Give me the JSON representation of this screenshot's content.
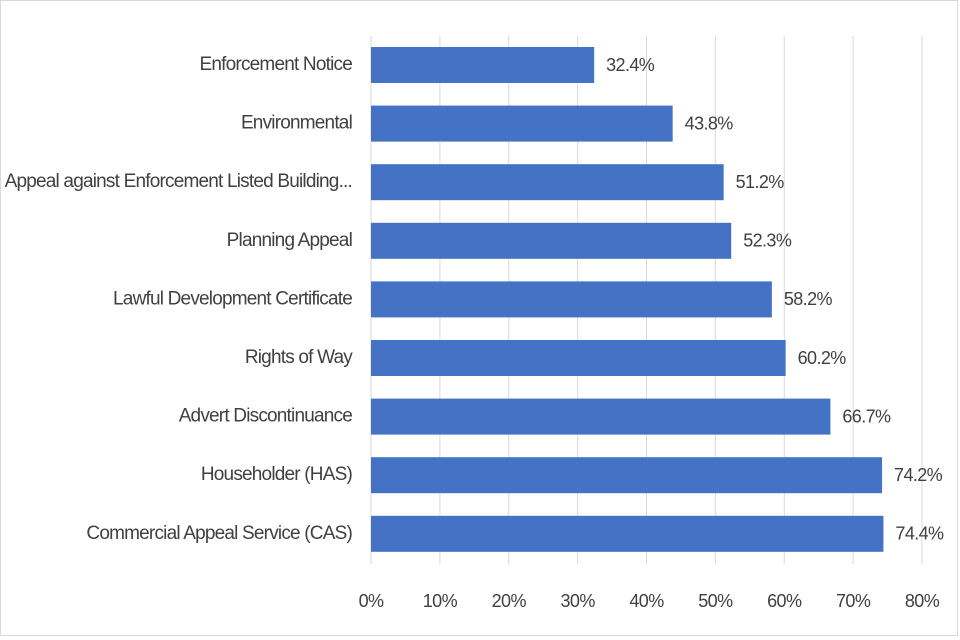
{
  "chart_data": {
    "type": "bar",
    "orientation": "horizontal",
    "categories": [
      "Enforcement Notice",
      "Environmental",
      "Appeal against Enforcement Listed Building...",
      "Planning Appeal",
      "Lawful Development Certificate",
      "Rights of Way",
      "Advert Discontinuance",
      "Householder (HAS)",
      "Commercial Appeal Service (CAS)"
    ],
    "values": [
      32.4,
      43.8,
      51.2,
      52.3,
      58.2,
      60.2,
      66.7,
      74.2,
      74.4
    ],
    "value_labels": [
      "32.4%",
      "43.8%",
      "51.2%",
      "52.3%",
      "58.2%",
      "60.2%",
      "66.7%",
      "74.2%",
      "74.4%"
    ],
    "xlim": [
      0,
      80
    ],
    "xticks": [
      0,
      10,
      20,
      30,
      40,
      50,
      60,
      70,
      80
    ],
    "xtick_labels": [
      "0%",
      "10%",
      "20%",
      "30%",
      "40%",
      "50%",
      "60%",
      "70%",
      "80%"
    ],
    "title": "",
    "xlabel": "",
    "ylabel": "",
    "grid": true,
    "bar_color": "#4472c4",
    "grid_color": "#d9d9d9",
    "text_color": "#404040"
  }
}
